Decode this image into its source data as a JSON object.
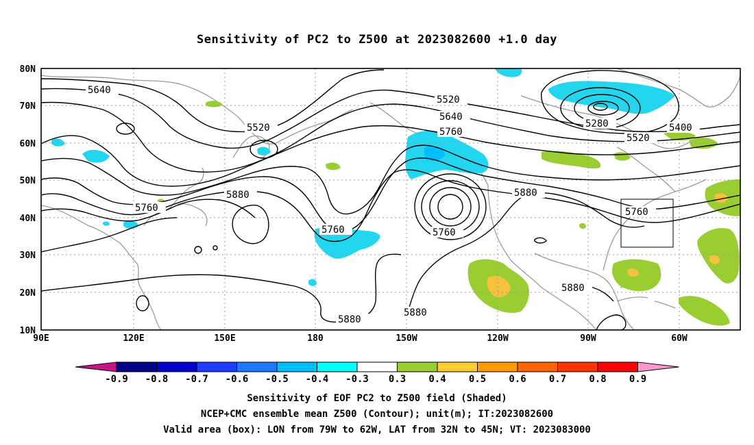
{
  "title": "Sensitivity of PC2 to Z500 at 2023082600 +1.0 day",
  "lat_labels": [
    "80N",
    "70N",
    "60N",
    "50N",
    "40N",
    "30N",
    "20N",
    "10N"
  ],
  "lon_labels": [
    "90E",
    "120E",
    "150E",
    "180",
    "150W",
    "120W",
    "90W",
    "60W"
  ],
  "contours": [
    {
      "level": 5640,
      "label": "5640"
    },
    {
      "level": 5520,
      "label": "5520"
    },
    {
      "level": 5520,
      "label": "5520"
    },
    {
      "level": 5640,
      "label": "5640"
    },
    {
      "level": 5760,
      "label": "5760"
    },
    {
      "level": 5280,
      "label": "5280"
    },
    {
      "level": 5400,
      "label": "5400"
    },
    {
      "level": 5520,
      "label": "5520"
    },
    {
      "level": 5760,
      "label": "5760"
    },
    {
      "level": 5880,
      "label": "5880"
    },
    {
      "level": 5760,
      "label": "5760"
    },
    {
      "level": 5760,
      "label": "5760"
    },
    {
      "level": 5880,
      "label": "5880"
    },
    {
      "level": 5760,
      "label": "5760"
    },
    {
      "level": 5880,
      "label": "5880"
    },
    {
      "level": 5880,
      "label": "5880"
    },
    {
      "level": 5880,
      "label": "5880"
    }
  ],
  "colorbar": {
    "labels": [
      "-0.9",
      "-0.8",
      "-0.7",
      "-0.6",
      "-0.5",
      "-0.4",
      "-0.3",
      "0.3",
      "0.4",
      "0.5",
      "0.6",
      "0.7",
      "0.8",
      "0.9"
    ],
    "colors": [
      "#c71585",
      "#00008b",
      "#0000cd",
      "#1e3cff",
      "#1e78ff",
      "#00bfff",
      "#00ffff",
      "#ffffff",
      "#9acd32",
      "#ffcc33",
      "#ff9900",
      "#ff6600",
      "#ff3300",
      "#ff0000",
      "#ff99cc"
    ]
  },
  "valid_box": {
    "lon_west": "79W",
    "lon_east": "62W",
    "lat_south": "32N",
    "lat_north": "45N"
  },
  "captions": [
    "Sensitivity of EOF PC2 to Z500 field (Shaded)",
    "NCEP+CMC ensemble mean Z500 (Contour); unit(m); IT:2023082600",
    "Valid area (box): LON from 79W to 62W, LAT from 32N to 45N; VT: 2023083000"
  ]
}
